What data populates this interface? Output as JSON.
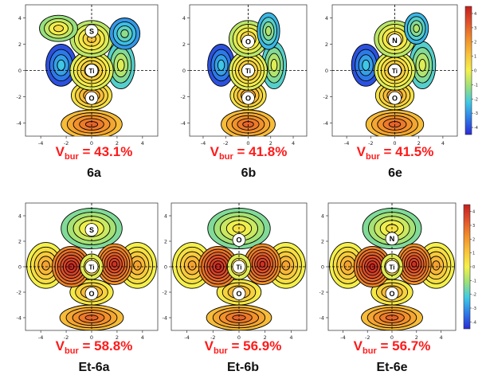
{
  "chart_data": [
    {
      "type": "heatmap",
      "label": "6a",
      "vbur": {
        "symbol": "V",
        "sub": "bur",
        "text": " = 43.1%"
      },
      "atoms": [
        {
          "symbol": "S",
          "x": 0,
          "y": 3.0
        },
        {
          "symbol": "Ti",
          "x": 0,
          "y": 0
        },
        {
          "symbol": "O",
          "x": 0,
          "y": -2.1
        }
      ],
      "xticks": [
        -4,
        -2,
        0,
        2,
        4
      ],
      "yticks": [
        4,
        2,
        0,
        -2,
        -4
      ],
      "xlim": [
        -5.2,
        5.2
      ],
      "ylim": [
        -5,
        5
      ]
    },
    {
      "type": "heatmap",
      "label": "6b",
      "vbur": {
        "symbol": "V",
        "sub": "bur",
        "text": " = 41.8%"
      },
      "atoms": [
        {
          "symbol": "O",
          "x": 0,
          "y": 2.2
        },
        {
          "symbol": "Ti",
          "x": 0,
          "y": 0
        },
        {
          "symbol": "O",
          "x": 0,
          "y": -2.1
        }
      ],
      "xticks": [
        -4,
        -2,
        0,
        2,
        4
      ],
      "yticks": [
        4,
        2,
        0,
        -2,
        -4
      ],
      "xlim": [
        -5.2,
        5.2
      ],
      "ylim": [
        -5,
        5
      ]
    },
    {
      "type": "heatmap",
      "label": "6e",
      "vbur": {
        "symbol": "V",
        "sub": "bur",
        "text": " = 41.5%"
      },
      "atoms": [
        {
          "symbol": "N",
          "x": 0,
          "y": 2.3
        },
        {
          "symbol": "Ti",
          "x": 0,
          "y": 0
        },
        {
          "symbol": "O",
          "x": 0,
          "y": -2.1
        }
      ],
      "xticks": [
        -4,
        -2,
        0,
        2,
        4
      ],
      "yticks": [
        4,
        2,
        0,
        -2,
        -4
      ],
      "xlim": [
        -5.2,
        5.2
      ],
      "ylim": [
        -5,
        5
      ],
      "colorbar": {
        "ticks": [
          4,
          3,
          2,
          1,
          0,
          -1,
          -2,
          -3,
          -4
        ],
        "range": [
          -4.5,
          4.5
        ]
      }
    },
    {
      "type": "heatmap",
      "label": "Et-6a",
      "vbur": {
        "symbol": "V",
        "sub": "bur",
        "text": " = 58.8%"
      },
      "atoms": [
        {
          "symbol": "S",
          "x": 0,
          "y": 2.9
        },
        {
          "symbol": "Ti",
          "x": 0,
          "y": 0
        },
        {
          "symbol": "O",
          "x": 0,
          "y": -2.1
        }
      ],
      "xticks": [
        -4,
        -2,
        0,
        2,
        4
      ],
      "yticks": [
        4,
        2,
        0,
        -2,
        -4
      ],
      "xlim": [
        -5.2,
        5.2
      ],
      "ylim": [
        -5,
        5
      ]
    },
    {
      "type": "heatmap",
      "label": "Et-6b",
      "vbur": {
        "symbol": "V",
        "sub": "bur",
        "text": " = 56.9%"
      },
      "atoms": [
        {
          "symbol": "O",
          "x": 0,
          "y": 2.1
        },
        {
          "symbol": "Ti",
          "x": 0,
          "y": 0
        },
        {
          "symbol": "O",
          "x": 0,
          "y": -2.1
        }
      ],
      "xticks": [
        -4,
        -2,
        0,
        2,
        4
      ],
      "yticks": [
        4,
        2,
        0,
        -2,
        -4
      ],
      "xlim": [
        -5.2,
        5.2
      ],
      "ylim": [
        -5,
        5
      ]
    },
    {
      "type": "heatmap",
      "label": "Et-6e",
      "vbur": {
        "symbol": "V",
        "sub": "bur",
        "text": " = 56.7%"
      },
      "atoms": [
        {
          "symbol": "N",
          "x": 0,
          "y": 2.2
        },
        {
          "symbol": "Ti",
          "x": 0,
          "y": 0
        },
        {
          "symbol": "O",
          "x": 0,
          "y": -2.1
        }
      ],
      "xticks": [
        -4,
        -2,
        0,
        2,
        4
      ],
      "yticks": [
        4,
        2,
        0,
        -2,
        -4
      ],
      "xlim": [
        -5.2,
        5.2
      ],
      "ylim": [
        -5,
        5
      ],
      "colorbar": {
        "ticks": [
          4,
          3,
          2,
          1,
          0,
          -1,
          -2,
          -3,
          -4
        ],
        "range": [
          -4.5,
          4.5
        ]
      }
    }
  ],
  "colors": {
    "vbur_text": "#ff1a1a",
    "label_text": "#111111",
    "contour": "#000000",
    "colormap": [
      "#2b2bd6",
      "#2e7be8",
      "#3fc9e6",
      "#9be07a",
      "#f5f04a",
      "#f8c23a",
      "#f18d2a",
      "#e0522a",
      "#c41f1f"
    ]
  }
}
